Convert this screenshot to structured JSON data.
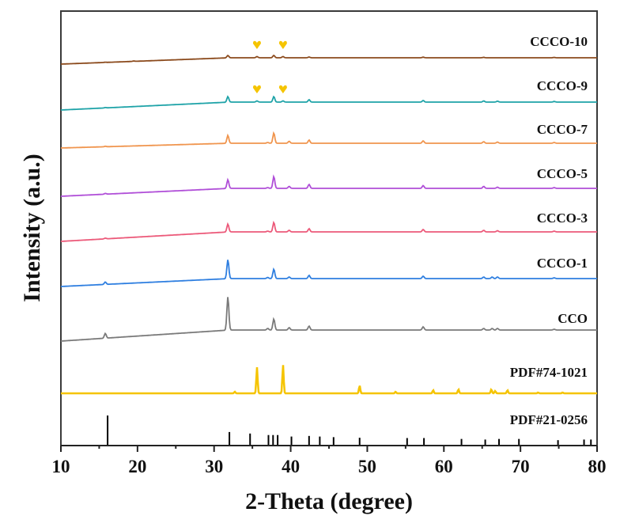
{
  "chart_data": {
    "type": "line",
    "title": "",
    "xlabel": "2-Theta (degree)",
    "ylabel": "Intensity (a.u.)",
    "xlim": [
      10,
      80
    ],
    "xticks": [
      10,
      20,
      30,
      40,
      50,
      60,
      70,
      80
    ],
    "yticks_shown": false,
    "grid": false,
    "marker_color": "#f5c400",
    "series": [
      {
        "name": "CCCO-10",
        "color": "#8b4a1c",
        "baseline_start": 0.0,
        "peaks": [
          [
            15.8,
            0.3
          ],
          [
            19.5,
            0.5
          ],
          [
            31.8,
            3
          ],
          [
            35.6,
            1.5
          ],
          [
            37.8,
            3
          ],
          [
            39.0,
            1.5
          ],
          [
            42.4,
            1
          ],
          [
            57.3,
            0.8
          ],
          [
            65.2,
            0.6
          ],
          [
            74.4,
            0.5
          ]
        ],
        "markers": [
          35.6,
          39.0
        ]
      },
      {
        "name": "CCCO-9",
        "color": "#1fa3a8",
        "peaks": [
          [
            15.8,
            0.5
          ],
          [
            31.8,
            7
          ],
          [
            35.6,
            1.5
          ],
          [
            37.8,
            7
          ],
          [
            39.0,
            1.5
          ],
          [
            42.4,
            3
          ],
          [
            57.3,
            2
          ],
          [
            65.2,
            1.5
          ],
          [
            67.0,
            1.2
          ],
          [
            74.4,
            0.8
          ]
        ],
        "markers": [
          35.6,
          39.0
        ]
      },
      {
        "name": "CCCO-7",
        "color": "#f0954e",
        "peaks": [
          [
            15.8,
            0.6
          ],
          [
            31.8,
            10
          ],
          [
            37.0,
            1
          ],
          [
            37.8,
            13
          ],
          [
            39.8,
            2.5
          ],
          [
            42.4,
            4
          ],
          [
            57.3,
            3
          ],
          [
            65.2,
            2
          ],
          [
            67.0,
            1.5
          ],
          [
            74.4,
            1
          ]
        ],
        "markers": []
      },
      {
        "name": "CCCO-5",
        "color": "#b04fd8",
        "peaks": [
          [
            15.8,
            1
          ],
          [
            31.8,
            11
          ],
          [
            37.0,
            1
          ],
          [
            37.8,
            15
          ],
          [
            39.8,
            2.5
          ],
          [
            42.4,
            5
          ],
          [
            57.3,
            3.5
          ],
          [
            65.2,
            2.5
          ],
          [
            67.0,
            1.5
          ],
          [
            74.4,
            1
          ]
        ],
        "markers": []
      },
      {
        "name": "CCCO-3",
        "color": "#ec5a7a",
        "peaks": [
          [
            15.8,
            1
          ],
          [
            31.8,
            10
          ],
          [
            37.0,
            1
          ],
          [
            37.8,
            12
          ],
          [
            39.8,
            2
          ],
          [
            42.4,
            4
          ],
          [
            57.3,
            3
          ],
          [
            65.2,
            2
          ],
          [
            67.0,
            1.5
          ],
          [
            74.4,
            1
          ]
        ],
        "markers": []
      },
      {
        "name": "CCCO-1",
        "color": "#2f7fe0",
        "peaks": [
          [
            15.8,
            3
          ],
          [
            31.8,
            24
          ],
          [
            37.0,
            1.5
          ],
          [
            37.8,
            12
          ],
          [
            39.8,
            2
          ],
          [
            42.4,
            4
          ],
          [
            57.3,
            3
          ],
          [
            65.2,
            2
          ],
          [
            66.3,
            2
          ],
          [
            67.0,
            2
          ],
          [
            74.4,
            1
          ]
        ],
        "markers": []
      },
      {
        "name": "CCO",
        "color": "#7a7a7a",
        "peaks": [
          [
            15.8,
            6
          ],
          [
            31.8,
            42
          ],
          [
            37.0,
            2
          ],
          [
            37.8,
            14
          ],
          [
            39.8,
            3
          ],
          [
            42.4,
            5
          ],
          [
            57.3,
            4
          ],
          [
            65.2,
            2
          ],
          [
            66.3,
            2
          ],
          [
            67.0,
            2
          ],
          [
            74.4,
            1
          ]
        ],
        "markers": []
      },
      {
        "name": "PDF#74-1021",
        "color": "#f5c400",
        "peaks": [
          [
            32.7,
            2
          ],
          [
            35.6,
            33
          ],
          [
            39.0,
            36
          ],
          [
            49.0,
            10
          ],
          [
            53.7,
            2
          ],
          [
            58.6,
            4
          ],
          [
            61.9,
            5
          ],
          [
            66.2,
            5
          ],
          [
            66.7,
            3
          ],
          [
            68.3,
            4
          ],
          [
            72.3,
            1
          ],
          [
            75.5,
            1
          ]
        ],
        "markers": []
      },
      {
        "name": "PDF#21-0256",
        "color": "#000000",
        "peaks": [
          [
            16.1,
            100
          ],
          [
            32.0,
            45
          ],
          [
            34.7,
            40
          ],
          [
            37.1,
            35
          ],
          [
            37.7,
            35
          ],
          [
            38.3,
            35
          ],
          [
            40.1,
            30
          ],
          [
            42.4,
            32
          ],
          [
            43.8,
            30
          ],
          [
            45.6,
            28
          ],
          [
            49.0,
            26
          ],
          [
            55.2,
            25
          ],
          [
            57.4,
            25
          ],
          [
            62.3,
            22
          ],
          [
            65.4,
            20
          ],
          [
            67.2,
            22
          ],
          [
            69.8,
            22
          ],
          [
            74.9,
            18
          ],
          [
            78.3,
            20
          ],
          [
            79.2,
            20
          ]
        ],
        "markers": []
      }
    ]
  }
}
